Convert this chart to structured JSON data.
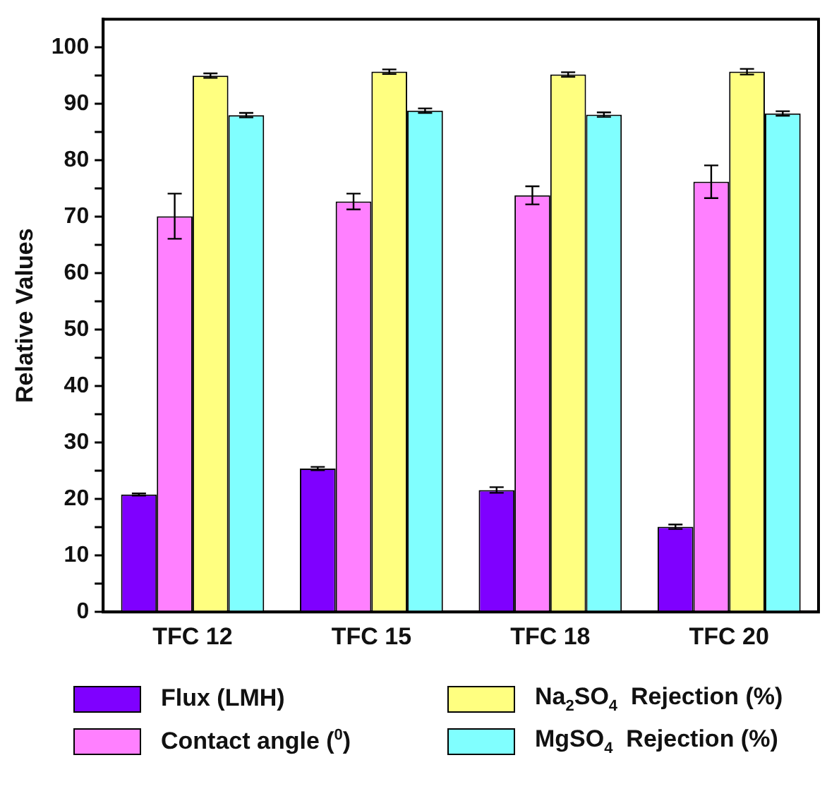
{
  "chart_data": {
    "type": "bar",
    "ylabel": "Relative Values",
    "categories": [
      "TFC 12",
      "TFC 15",
      "TFC 18",
      "TFC 20"
    ],
    "series": [
      {
        "name": "Flux (LMH)",
        "color": "#7f00ff",
        "values": [
          20.8,
          25.4,
          21.6,
          15.1
        ],
        "errors": [
          0.2,
          0.3,
          0.5,
          0.4
        ]
      },
      {
        "name": "Contact angle ($^{0}$)",
        "color": "#ff80ff",
        "values": [
          70.1,
          72.7,
          73.8,
          76.2
        ],
        "errors": [
          4,
          1.4,
          1.6,
          2.9
        ]
      },
      {
        "name": "Na$_{2}$SO$_{4}$  Rejection (%)",
        "color": "#ffff80",
        "values": [
          95.0,
          95.7,
          95.2,
          95.7
        ],
        "errors": [
          0.4,
          0.4,
          0.4,
          0.5
        ]
      },
      {
        "name": "MgSO$_{4}$  Rejection (%)",
        "color": "#80ffff",
        "values": [
          88.0,
          88.8,
          88.1,
          88.3
        ],
        "errors": [
          0.4,
          0.4,
          0.4,
          0.4
        ]
      }
    ],
    "ylim": [
      0,
      105
    ],
    "yticks": [
      0,
      {
        "value": 5,
        "label": null
      },
      10,
      {
        "value": 15,
        "label": null
      },
      20,
      {
        "value": 25,
        "label": null
      },
      30,
      {
        "value": 35,
        "label": null
      },
      40,
      {
        "value": 45,
        "label": null
      },
      50,
      {
        "value": 55,
        "label": null
      },
      60,
      {
        "value": 65,
        "label": null
      },
      70,
      {
        "value": 75,
        "label": null
      },
      80,
      {
        "value": 85,
        "label": null
      },
      90,
      {
        "value": 95,
        "label": null
      },
      100
    ],
    "grid": false,
    "legend": "bottom"
  }
}
